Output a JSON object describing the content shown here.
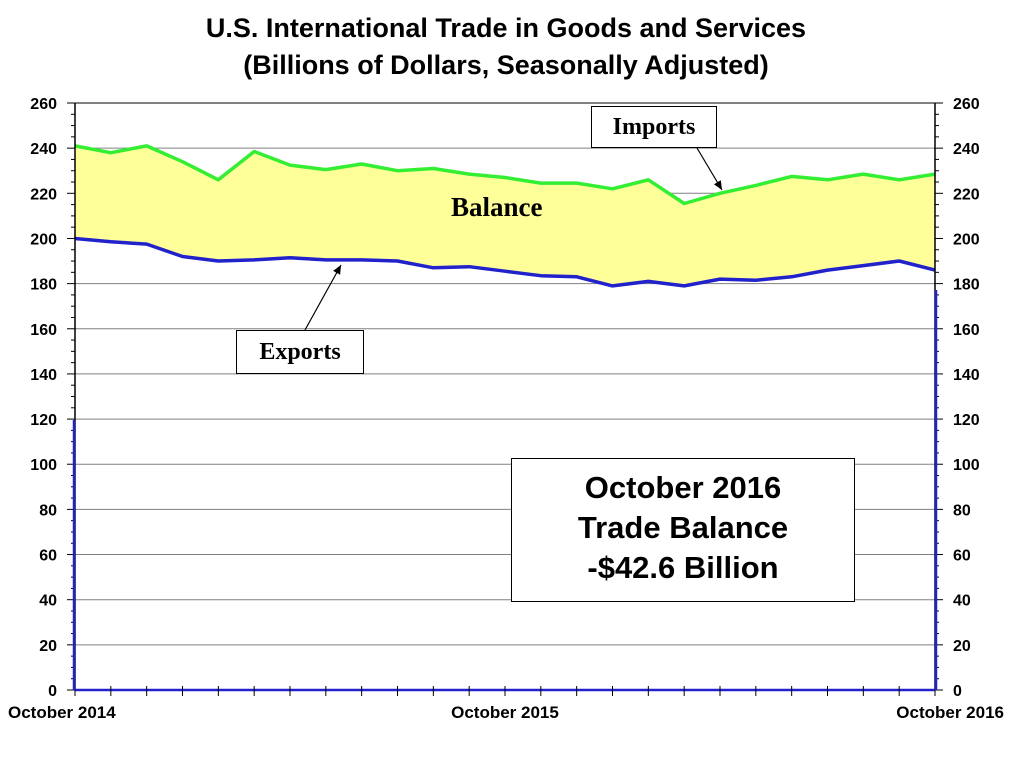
{
  "title_line1": "U.S. International Trade in Goods and Services",
  "title_line2": "(Billions of Dollars, Seasonally Adjusted)",
  "chart_data": {
    "type": "line",
    "x_tick_labels": [
      "October 2014",
      "October 2015",
      "October 2016"
    ],
    "x": [
      "Oct 2014",
      "Nov 2014",
      "Dec 2014",
      "Jan 2015",
      "Feb 2015",
      "Mar 2015",
      "Apr 2015",
      "May 2015",
      "Jun 2015",
      "Jul 2015",
      "Aug 2015",
      "Sep 2015",
      "Oct 2015",
      "Nov 2015",
      "Dec 2015",
      "Jan 2016",
      "Feb 2016",
      "Mar 2016",
      "Apr 2016",
      "May 2016",
      "Jun 2016",
      "Jul 2016",
      "Aug 2016",
      "Sep 2016",
      "Oct 2016"
    ],
    "series": [
      {
        "name": "Imports",
        "color": "#33ee33",
        "values": [
          241,
          238,
          241,
          234,
          226,
          238.5,
          232.5,
          230.5,
          233,
          230,
          231,
          228.5,
          227,
          224.5,
          224.5,
          222,
          226,
          215.5,
          220,
          223.5,
          227.5,
          226,
          228.5,
          226,
          228.5
        ]
      },
      {
        "name": "Exports",
        "color": "#2222cc",
        "values": [
          200,
          198.5,
          197.5,
          192,
          190,
          190.5,
          191.5,
          190.5,
          190.5,
          190,
          187,
          187.5,
          185.5,
          183.5,
          183,
          179,
          181,
          179,
          182,
          181.5,
          183,
          186,
          188,
          190,
          186
        ]
      }
    ],
    "ylim": [
      0,
      260
    ],
    "y_ticks": [
      0,
      20,
      40,
      60,
      80,
      100,
      120,
      140,
      160,
      180,
      200,
      220,
      240,
      260
    ],
    "fill_between": {
      "label": "Balance",
      "color": "#ffff99"
    },
    "grid": true,
    "dual_y_axis": true
  },
  "annotations": {
    "imports_label": "Imports",
    "exports_label": "Exports",
    "balance_label": "Balance"
  },
  "info_box": {
    "line1": "October 2016",
    "line2": "Trade Balance",
    "line3": "-$42.6 Billion"
  }
}
